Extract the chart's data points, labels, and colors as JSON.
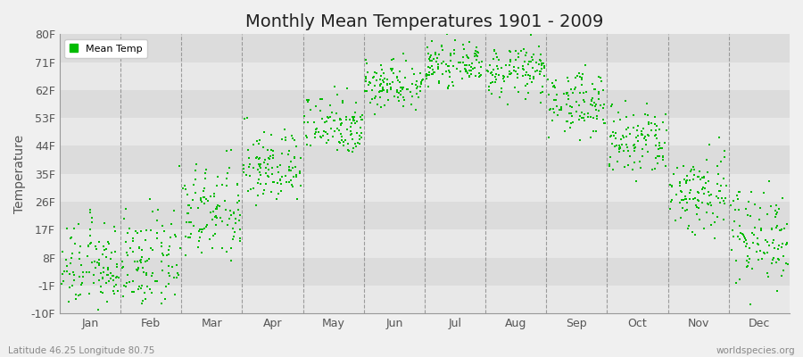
{
  "title": "Monthly Mean Temperatures 1901 - 2009",
  "ylabel": "Temperature",
  "bottom_left_label": "Latitude 46.25 Longitude 80.75",
  "bottom_right_label": "worldspecies.org",
  "ytick_labels": [
    "-10F",
    "-1F",
    "8F",
    "17F",
    "26F",
    "35F",
    "44F",
    "53F",
    "62F",
    "71F",
    "80F"
  ],
  "ytick_values": [
    -10,
    -1,
    8,
    17,
    26,
    35,
    44,
    53,
    62,
    71,
    80
  ],
  "ylim": [
    -10,
    80
  ],
  "months": [
    "Jan",
    "Feb",
    "Mar",
    "Apr",
    "May",
    "Jun",
    "Jul",
    "Aug",
    "Sep",
    "Oct",
    "Nov",
    "Dec"
  ],
  "dot_color": "#00BB00",
  "bg_color": "#F0F0F0",
  "band_colors": [
    "#E8E8E8",
    "#DCDCDC"
  ],
  "legend_label": "Mean Temp",
  "years": 109,
  "monthly_means_f": [
    5,
    6,
    22,
    37,
    51,
    64,
    70,
    68,
    58,
    45,
    29,
    15
  ],
  "monthly_stds_f": [
    7,
    8,
    8,
    6,
    5,
    4,
    3,
    4,
    5,
    6,
    7,
    8
  ],
  "title_fontsize": 14,
  "axis_label_fontsize": 9,
  "ylabel_fontsize": 10
}
